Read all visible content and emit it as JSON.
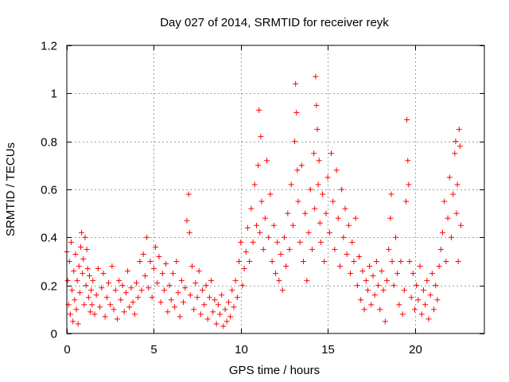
{
  "chart_data": {
    "type": "scatter",
    "title": "Day 027 of 2014, SRMTID for receiver reyk",
    "xlabel": "GPS time / hours",
    "ylabel": "SRMTID / TECUs",
    "xlim": [
      0,
      24
    ],
    "ylim": [
      0,
      1.2
    ],
    "x_ticks": [
      0,
      5,
      10,
      15,
      20
    ],
    "x_tick_labels": [
      "0",
      "5",
      "10",
      "15",
      "20"
    ],
    "y_ticks": [
      0,
      0.2,
      0.4,
      0.6,
      0.8,
      1.0,
      1.2
    ],
    "y_tick_labels": [
      "0",
      "0.2",
      "0.4",
      "0.6",
      "0.8",
      "1",
      "1.2"
    ],
    "grid": true,
    "marker": "+",
    "color": "#ff0000",
    "series": [
      {
        "name": "SRMTID",
        "points": [
          [
            0.0,
            0.34
          ],
          [
            0.05,
            0.22
          ],
          [
            0.1,
            0.12
          ],
          [
            0.15,
            0.3
          ],
          [
            0.2,
            0.08
          ],
          [
            0.25,
            0.38
          ],
          [
            0.3,
            0.18
          ],
          [
            0.35,
            0.05
          ],
          [
            0.4,
            0.26
          ],
          [
            0.45,
            0.14
          ],
          [
            0.5,
            0.33
          ],
          [
            0.55,
            0.1
          ],
          [
            0.6,
            0.22
          ],
          [
            0.65,
            0.04
          ],
          [
            0.7,
            0.28
          ],
          [
            0.75,
            0.17
          ],
          [
            0.8,
            0.36
          ],
          [
            0.85,
            0.42
          ],
          [
            0.9,
            0.25
          ],
          [
            0.95,
            0.31
          ],
          [
            1.0,
            0.12
          ],
          [
            1.05,
            0.4
          ],
          [
            1.1,
            0.2
          ],
          [
            1.15,
            0.35
          ],
          [
            1.2,
            0.27
          ],
          [
            1.25,
            0.15
          ],
          [
            1.3,
            0.24
          ],
          [
            1.35,
            0.09
          ],
          [
            1.4,
            0.18
          ],
          [
            1.45,
            0.12
          ],
          [
            1.5,
            0.22
          ],
          [
            1.6,
            0.08
          ],
          [
            1.7,
            0.16
          ],
          [
            1.8,
            0.27
          ],
          [
            1.9,
            0.11
          ],
          [
            2.0,
            0.19
          ],
          [
            2.1,
            0.25
          ],
          [
            2.2,
            0.07
          ],
          [
            2.3,
            0.15
          ],
          [
            2.4,
            0.21
          ],
          [
            2.5,
            0.12
          ],
          [
            2.6,
            0.28
          ],
          [
            2.7,
            0.1
          ],
          [
            2.8,
            0.18
          ],
          [
            2.9,
            0.06
          ],
          [
            3.0,
            0.22
          ],
          [
            3.1,
            0.14
          ],
          [
            3.2,
            0.2
          ],
          [
            3.3,
            0.09
          ],
          [
            3.4,
            0.17
          ],
          [
            3.5,
            0.26
          ],
          [
            3.6,
            0.11
          ],
          [
            3.7,
            0.19
          ],
          [
            3.8,
            0.13
          ],
          [
            3.9,
            0.08
          ],
          [
            4.0,
            0.21
          ],
          [
            4.1,
            0.15
          ],
          [
            4.2,
            0.3
          ],
          [
            4.3,
            0.18
          ],
          [
            4.4,
            0.33
          ],
          [
            4.5,
            0.24
          ],
          [
            4.6,
            0.4
          ],
          [
            4.7,
            0.19
          ],
          [
            4.8,
            0.3
          ],
          [
            4.9,
            0.15
          ],
          [
            5.0,
            0.27
          ],
          [
            5.1,
            0.36
          ],
          [
            5.2,
            0.21
          ],
          [
            5.3,
            0.32
          ],
          [
            5.4,
            0.13
          ],
          [
            5.5,
            0.25
          ],
          [
            5.6,
            0.18
          ],
          [
            5.7,
            0.29
          ],
          [
            5.8,
            0.09
          ],
          [
            5.9,
            0.2
          ],
          [
            6.0,
            0.14
          ],
          [
            6.1,
            0.25
          ],
          [
            6.2,
            0.11
          ],
          [
            6.3,
            0.3
          ],
          [
            6.4,
            0.17
          ],
          [
            6.5,
            0.07
          ],
          [
            6.6,
            0.22
          ],
          [
            6.7,
            0.13
          ],
          [
            6.8,
            0.19
          ],
          [
            6.9,
            0.47
          ],
          [
            7.0,
            0.58
          ],
          [
            7.05,
            0.42
          ],
          [
            7.1,
            0.16
          ],
          [
            7.2,
            0.28
          ],
          [
            7.3,
            0.1
          ],
          [
            7.4,
            0.21
          ],
          [
            7.5,
            0.15
          ],
          [
            7.6,
            0.26
          ],
          [
            7.7,
            0.08
          ],
          [
            7.8,
            0.18
          ],
          [
            7.9,
            0.12
          ],
          [
            8.0,
            0.2
          ],
          [
            8.1,
            0.06
          ],
          [
            8.2,
            0.15
          ],
          [
            8.3,
            0.22
          ],
          [
            8.4,
            0.09
          ],
          [
            8.5,
            0.14
          ],
          [
            8.6,
            0.04
          ],
          [
            8.7,
            0.12
          ],
          [
            8.8,
            0.08
          ],
          [
            8.9,
            0.16
          ],
          [
            9.0,
            0.03
          ],
          [
            9.1,
            0.1
          ],
          [
            9.2,
            0.05
          ],
          [
            9.3,
            0.13
          ],
          [
            9.4,
            0.07
          ],
          [
            9.5,
            0.18
          ],
          [
            9.6,
            0.11
          ],
          [
            9.7,
            0.22
          ],
          [
            9.8,
            0.15
          ],
          [
            9.9,
            0.3
          ],
          [
            10.0,
            0.38
          ],
          [
            10.1,
            0.2
          ],
          [
            10.2,
            0.27
          ],
          [
            10.3,
            0.34
          ],
          [
            10.4,
            0.44
          ],
          [
            10.5,
            0.3
          ],
          [
            10.6,
            0.52
          ],
          [
            10.7,
            0.38
          ],
          [
            10.8,
            0.62
          ],
          [
            10.9,
            0.45
          ],
          [
            11.0,
            0.7
          ],
          [
            11.05,
            0.93
          ],
          [
            11.1,
            0.42
          ],
          [
            11.15,
            0.82
          ],
          [
            11.2,
            0.55
          ],
          [
            11.3,
            0.35
          ],
          [
            11.4,
            0.48
          ],
          [
            11.5,
            0.72
          ],
          [
            11.6,
            0.4
          ],
          [
            11.7,
            0.58
          ],
          [
            11.8,
            0.3
          ],
          [
            11.9,
            0.45
          ],
          [
            12.0,
            0.25
          ],
          [
            12.1,
            0.38
          ],
          [
            12.2,
            0.22
          ],
          [
            12.3,
            0.33
          ],
          [
            12.4,
            0.18
          ],
          [
            12.5,
            0.4
          ],
          [
            12.6,
            0.28
          ],
          [
            12.7,
            0.5
          ],
          [
            12.8,
            0.35
          ],
          [
            12.9,
            0.62
          ],
          [
            13.0,
            0.45
          ],
          [
            13.1,
            0.8
          ],
          [
            13.15,
            1.04
          ],
          [
            13.2,
            0.92
          ],
          [
            13.25,
            0.68
          ],
          [
            13.3,
            0.55
          ],
          [
            13.4,
            0.38
          ],
          [
            13.5,
            0.7
          ],
          [
            13.6,
            0.3
          ],
          [
            13.7,
            0.5
          ],
          [
            13.8,
            0.22
          ],
          [
            13.9,
            0.42
          ],
          [
            14.0,
            0.6
          ],
          [
            14.1,
            0.35
          ],
          [
            14.2,
            0.75
          ],
          [
            14.25,
            0.52
          ],
          [
            14.3,
            1.07
          ],
          [
            14.35,
            0.95
          ],
          [
            14.4,
            0.85
          ],
          [
            14.45,
            0.62
          ],
          [
            14.5,
            0.72
          ],
          [
            14.55,
            0.46
          ],
          [
            14.6,
            0.38
          ],
          [
            14.7,
            0.58
          ],
          [
            14.8,
            0.3
          ],
          [
            14.9,
            0.5
          ],
          [
            15.0,
            0.65
          ],
          [
            15.1,
            0.42
          ],
          [
            15.2,
            0.75
          ],
          [
            15.3,
            0.55
          ],
          [
            15.4,
            0.35
          ],
          [
            15.5,
            0.68
          ],
          [
            15.6,
            0.48
          ],
          [
            15.7,
            0.28
          ],
          [
            15.8,
            0.6
          ],
          [
            15.9,
            0.4
          ],
          [
            16.0,
            0.52
          ],
          [
            16.1,
            0.33
          ],
          [
            16.2,
            0.45
          ],
          [
            16.3,
            0.25
          ],
          [
            16.4,
            0.38
          ],
          [
            16.5,
            0.3
          ],
          [
            16.6,
            0.48
          ],
          [
            16.7,
            0.2
          ],
          [
            16.8,
            0.32
          ],
          [
            16.9,
            0.14
          ],
          [
            17.0,
            0.26
          ],
          [
            17.1,
            0.1
          ],
          [
            17.2,
            0.22
          ],
          [
            17.3,
            0.18
          ],
          [
            17.4,
            0.28
          ],
          [
            17.5,
            0.12
          ],
          [
            17.6,
            0.24
          ],
          [
            17.7,
            0.16
          ],
          [
            17.8,
            0.3
          ],
          [
            17.9,
            0.2
          ],
          [
            18.0,
            0.1
          ],
          [
            18.1,
            0.26
          ],
          [
            18.2,
            0.18
          ],
          [
            18.3,
            0.05
          ],
          [
            18.4,
            0.22
          ],
          [
            18.5,
            0.35
          ],
          [
            18.6,
            0.48
          ],
          [
            18.65,
            0.58
          ],
          [
            18.7,
            0.3
          ],
          [
            18.8,
            0.2
          ],
          [
            18.9,
            0.4
          ],
          [
            19.0,
            0.25
          ],
          [
            19.1,
            0.12
          ],
          [
            19.2,
            0.3
          ],
          [
            19.3,
            0.08
          ],
          [
            19.4,
            0.18
          ],
          [
            19.5,
            0.55
          ],
          [
            19.55,
            0.89
          ],
          [
            19.6,
            0.72
          ],
          [
            19.65,
            0.62
          ],
          [
            19.7,
            0.3
          ],
          [
            19.8,
            0.15
          ],
          [
            19.9,
            0.25
          ],
          [
            20.0,
            0.1
          ],
          [
            20.1,
            0.2
          ],
          [
            20.2,
            0.14
          ],
          [
            20.3,
            0.28
          ],
          [
            20.4,
            0.08
          ],
          [
            20.5,
            0.18
          ],
          [
            20.6,
            0.12
          ],
          [
            20.7,
            0.22
          ],
          [
            20.8,
            0.06
          ],
          [
            20.9,
            0.16
          ],
          [
            21.0,
            0.25
          ],
          [
            21.1,
            0.1
          ],
          [
            21.2,
            0.2
          ],
          [
            21.3,
            0.14
          ],
          [
            21.4,
            0.28
          ],
          [
            21.5,
            0.35
          ],
          [
            21.6,
            0.42
          ],
          [
            21.7,
            0.55
          ],
          [
            21.8,
            0.3
          ],
          [
            21.9,
            0.48
          ],
          [
            22.0,
            0.65
          ],
          [
            22.1,
            0.4
          ],
          [
            22.2,
            0.58
          ],
          [
            22.3,
            0.75
          ],
          [
            22.35,
            0.8
          ],
          [
            22.4,
            0.5
          ],
          [
            22.45,
            0.62
          ],
          [
            22.5,
            0.3
          ],
          [
            22.55,
            0.85
          ],
          [
            22.6,
            0.78
          ],
          [
            22.65,
            0.45
          ]
        ]
      }
    ]
  }
}
